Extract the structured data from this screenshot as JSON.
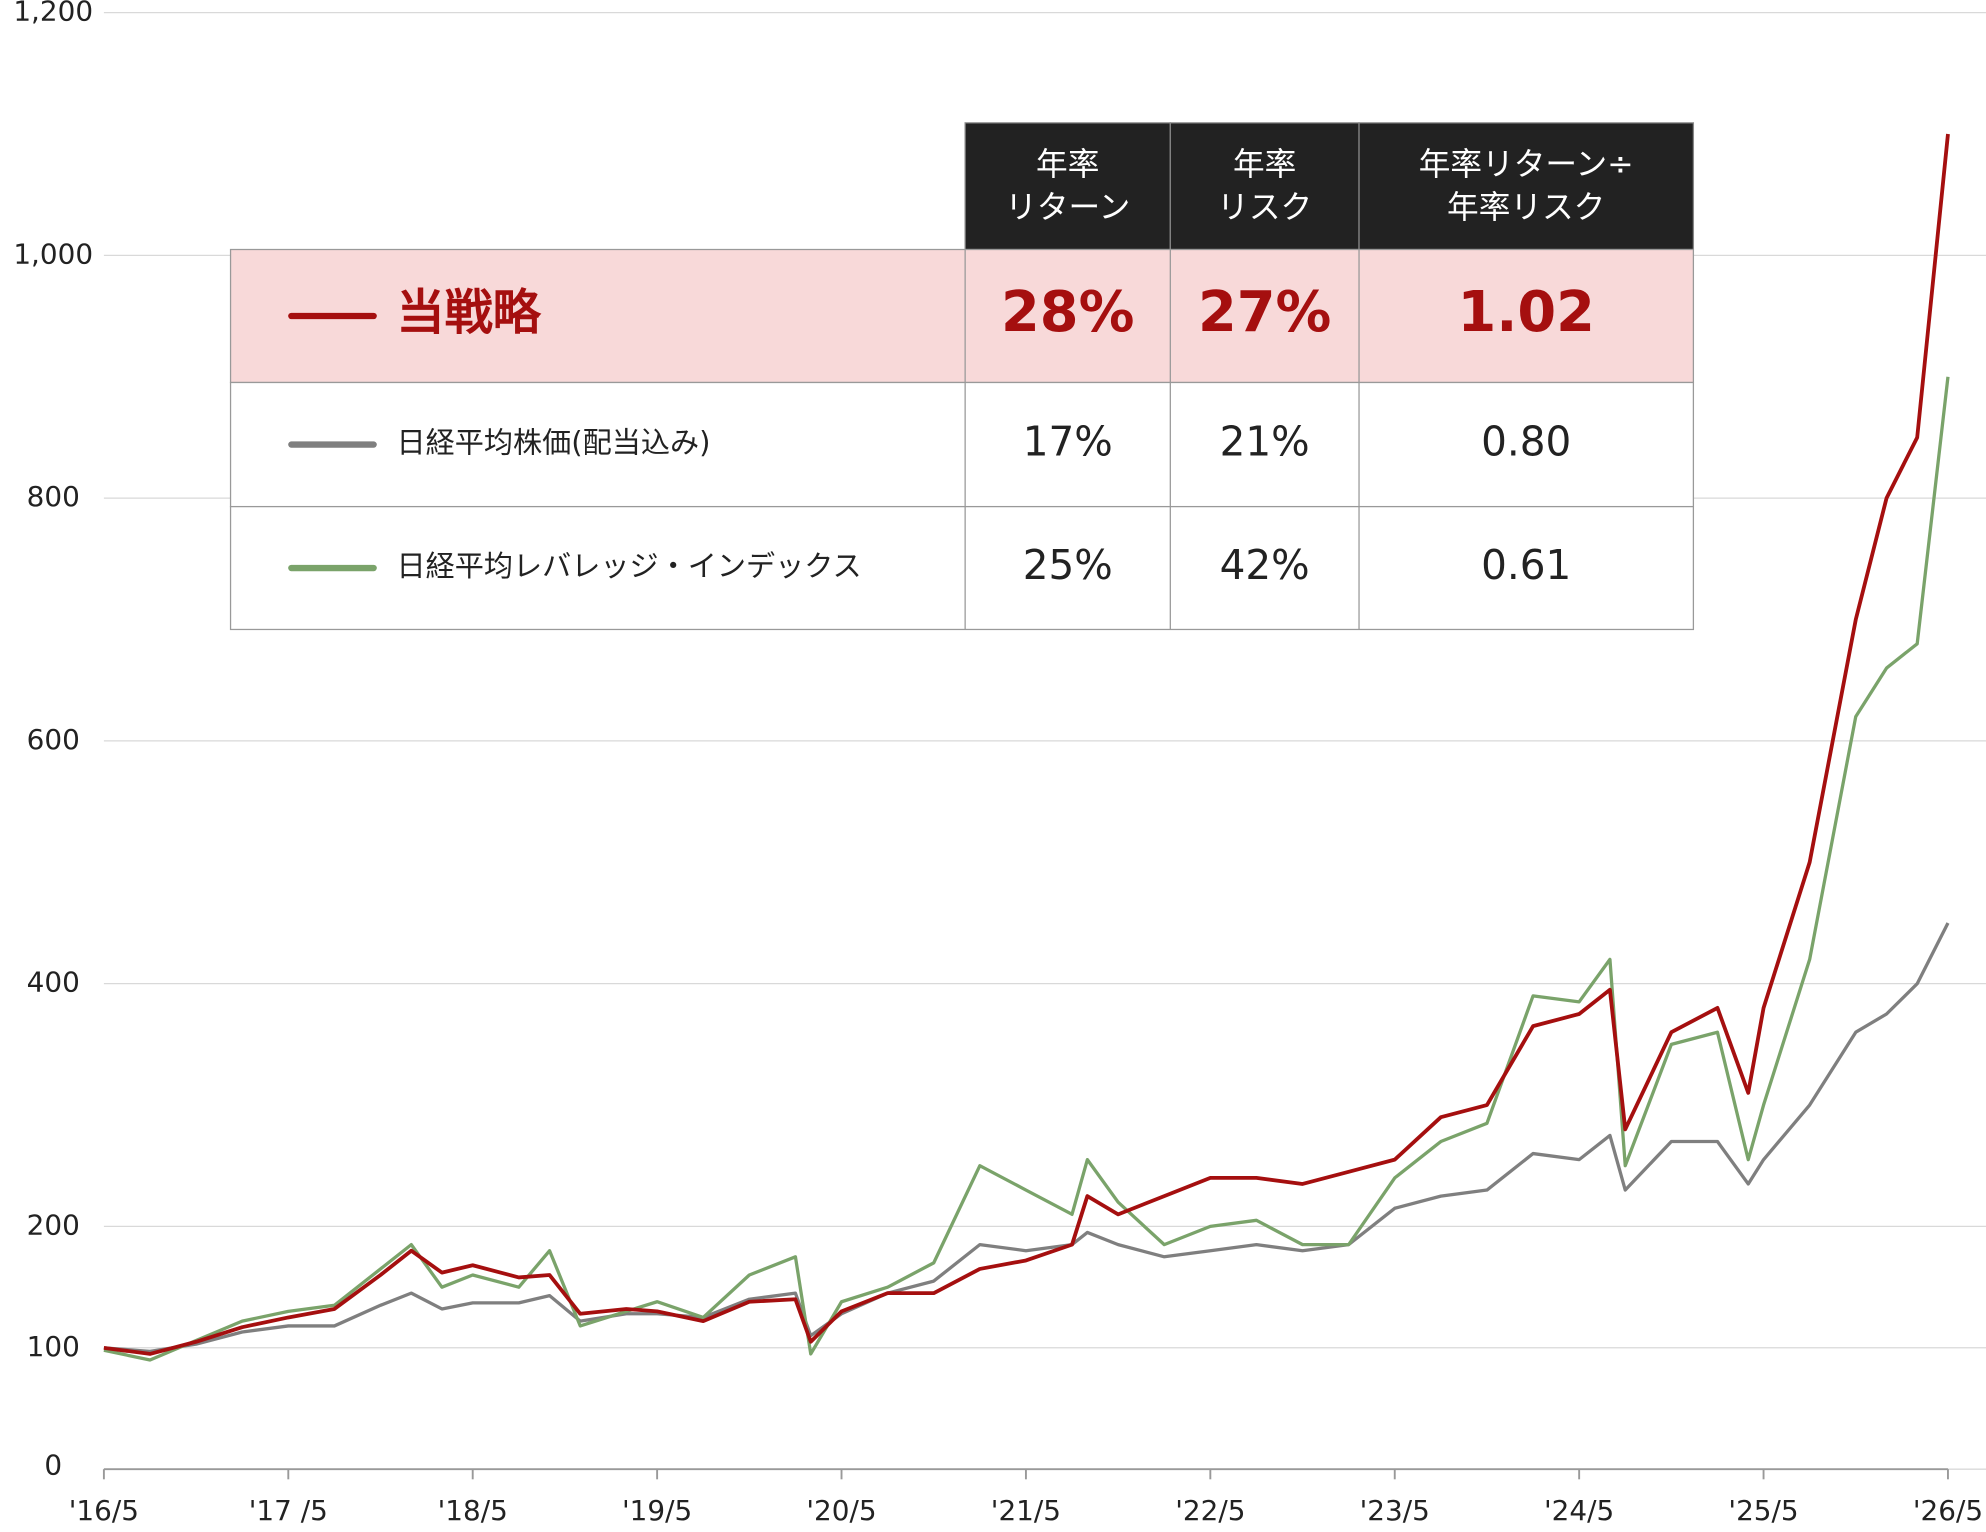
{
  "chart_data": {
    "type": "line",
    "x": [
      "2016-05",
      "2016-08",
      "2016-11",
      "2017-02",
      "2017-05",
      "2017-08",
      "2017-11",
      "2018-01",
      "2018-03",
      "2018-05",
      "2018-08",
      "2018-10",
      "2018-12",
      "2019-03",
      "2019-05",
      "2019-08",
      "2019-11",
      "2020-02",
      "2020-03",
      "2020-05",
      "2020-08",
      "2020-11",
      "2021-02",
      "2021-05",
      "2021-08",
      "2021-09",
      "2021-11",
      "2022-02",
      "2022-05",
      "2022-08",
      "2022-11",
      "2023-02",
      "2023-05",
      "2023-08",
      "2023-11",
      "2024-02",
      "2024-05",
      "2024-07",
      "2024-08",
      "2024-11",
      "2025-02",
      "2025-04",
      "2025-05",
      "2025-08",
      "2025-11",
      "2026-01",
      "2026-03",
      "2026-05"
    ],
    "series": [
      {
        "name": "当戦略",
        "color": "#a50f0f",
        "values": [
          100,
          95,
          105,
          117,
          125,
          132,
          160,
          180,
          162,
          168,
          158,
          160,
          128,
          132,
          130,
          122,
          138,
          140,
          105,
          130,
          145,
          145,
          165,
          172,
          185,
          225,
          210,
          225,
          240,
          240,
          235,
          245,
          255,
          290,
          300,
          365,
          375,
          395,
          280,
          360,
          380,
          310,
          380,
          500,
          700,
          800,
          850,
          1100
        ]
      },
      {
        "name": "日経平均株価(配当込み)",
        "color": "#7f7f7f",
        "values": [
          100,
          97,
          103,
          113,
          118,
          118,
          135,
          145,
          132,
          137,
          137,
          143,
          122,
          128,
          128,
          125,
          140,
          145,
          110,
          128,
          145,
          155,
          185,
          180,
          185,
          195,
          185,
          175,
          180,
          185,
          180,
          185,
          215,
          225,
          230,
          260,
          255,
          275,
          230,
          270,
          270,
          235,
          255,
          300,
          360,
          375,
          400,
          450
        ]
      },
      {
        "name": "日経平均レバレッジ・インデックス",
        "color": "#7aa36a",
        "values": [
          98,
          90,
          106,
          122,
          130,
          135,
          165,
          185,
          150,
          160,
          150,
          180,
          118,
          130,
          138,
          125,
          160,
          175,
          95,
          138,
          150,
          170,
          250,
          230,
          210,
          255,
          220,
          185,
          200,
          205,
          185,
          185,
          240,
          270,
          285,
          390,
          385,
          420,
          250,
          350,
          360,
          255,
          300,
          420,
          620,
          660,
          680,
          900
        ]
      }
    ],
    "xlim": [
      "2016-05",
      "2026-05"
    ],
    "xticks": [
      {
        "value": "2016-05",
        "label": "'16/5"
      },
      {
        "value": "2017-05",
        "label": "'17 /5"
      },
      {
        "value": "2018-05",
        "label": "'18/5"
      },
      {
        "value": "2019-05",
        "label": "'19/5"
      },
      {
        "value": "2020-05",
        "label": "'20/5"
      },
      {
        "value": "2021-05",
        "label": "'21/5"
      },
      {
        "value": "2022-05",
        "label": "'22/5"
      },
      {
        "value": "2023-05",
        "label": "'23/5"
      },
      {
        "value": "2024-05",
        "label": "'24/5"
      },
      {
        "value": "2025-05",
        "label": "'25/5"
      },
      {
        "value": "2026-05",
        "label": "'26/5"
      }
    ],
    "ylim": [
      0,
      1200
    ],
    "yticks": [
      0,
      100,
      200,
      400,
      600,
      800,
      {
        "value": 1000,
        "label": "1,000"
      },
      {
        "value": 1200,
        "label": "1,200"
      }
    ],
    "grid": true
  },
  "table": {
    "header": [
      [
        "年率",
        "リターン"
      ],
      [
        "年率",
        "リスク"
      ],
      [
        "年率リターン÷",
        "年率リスク"
      ]
    ],
    "rows": [
      [
        "28%",
        "27%",
        "1.02"
      ],
      [
        "17%",
        "21%",
        "0.80"
      ],
      [
        "25%",
        "42%",
        "0.61"
      ]
    ]
  }
}
